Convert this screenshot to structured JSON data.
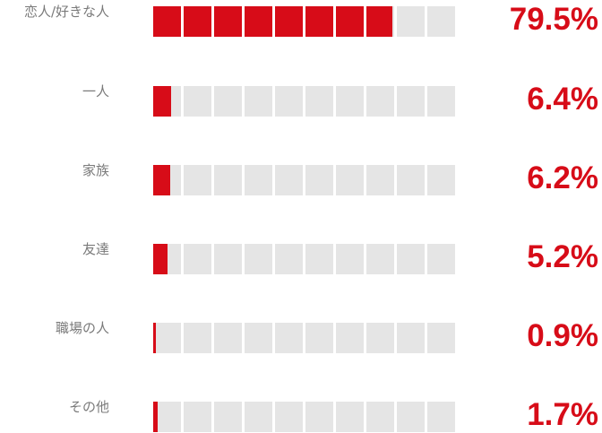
{
  "chart_data": {
    "type": "bar",
    "orientation": "horizontal",
    "title": "",
    "xlabel": "",
    "ylabel": "",
    "xlim": [
      0,
      100
    ],
    "segments": 10,
    "categories": [
      "恋人/好きな人",
      "一人",
      "家族",
      "友達",
      "職場の人",
      "その他"
    ],
    "values": [
      79.5,
      6.4,
      6.2,
      5.2,
      0.9,
      1.7
    ],
    "value_labels": [
      "79.5%",
      "6.4%",
      "6.2%",
      "5.2%",
      "0.9%",
      "1.7%"
    ],
    "grid": false,
    "legend": "none"
  },
  "colors": {
    "accent": "#d70c18",
    "track": "#e5e5e5",
    "label": "#7a7a7a"
  }
}
